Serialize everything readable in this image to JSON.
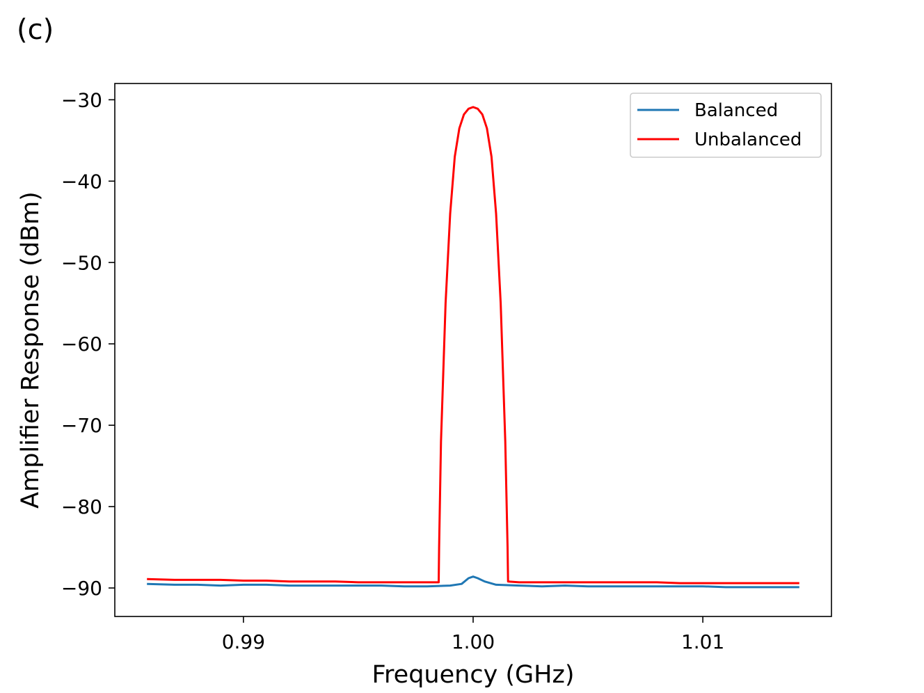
{
  "panel_label": "(c)",
  "chart_data": {
    "type": "line",
    "title": "",
    "xlabel": "Frequency (GHz)",
    "ylabel": "Amplifier Response (dBm)",
    "xlim": [
      0.9844,
      1.0156
    ],
    "ylim": [
      -93.5,
      -28
    ],
    "x_ticks": [
      0.99,
      1.0,
      1.01
    ],
    "x_tick_labels": [
      "0.99",
      "1.00",
      "1.01"
    ],
    "y_ticks": [
      -90,
      -80,
      -70,
      -60,
      -50,
      -40,
      -30
    ],
    "y_tick_labels": [
      "−90",
      "−80",
      "−70",
      "−60",
      "−50",
      "−40",
      "−30"
    ],
    "grid": false,
    "legend": {
      "position": "top-right",
      "entries": [
        "Balanced",
        "Unbalanced"
      ]
    },
    "series": [
      {
        "name": "Balanced",
        "color": "#1f77b4",
        "x": [
          0.9858,
          0.987,
          0.988,
          0.989,
          0.99,
          0.991,
          0.992,
          0.993,
          0.994,
          0.995,
          0.996,
          0.997,
          0.998,
          0.999,
          0.9995,
          0.9998,
          1.0,
          1.0002,
          1.0005,
          1.001,
          1.002,
          1.003,
          1.004,
          1.005,
          1.006,
          1.007,
          1.008,
          1.009,
          1.01,
          1.011,
          1.012,
          1.013,
          1.0142
        ],
        "y": [
          -89.5,
          -89.6,
          -89.6,
          -89.7,
          -89.6,
          -89.6,
          -89.7,
          -89.7,
          -89.7,
          -89.7,
          -89.7,
          -89.8,
          -89.8,
          -89.7,
          -89.5,
          -88.8,
          -88.6,
          -88.8,
          -89.2,
          -89.6,
          -89.7,
          -89.8,
          -89.7,
          -89.8,
          -89.8,
          -89.8,
          -89.8,
          -89.8,
          -89.8,
          -89.9,
          -89.9,
          -89.9,
          -89.9
        ]
      },
      {
        "name": "Unbalanced",
        "color": "#ff0000",
        "x": [
          0.9858,
          0.987,
          0.988,
          0.989,
          0.99,
          0.991,
          0.992,
          0.993,
          0.994,
          0.995,
          0.996,
          0.997,
          0.998,
          0.9985,
          0.99852,
          0.9986,
          0.9988,
          0.999,
          0.9992,
          0.9994,
          0.9996,
          0.9998,
          1.0,
          1.0002,
          1.0004,
          1.0006,
          1.0008,
          1.001,
          1.0012,
          1.0014,
          1.0015,
          1.00152,
          1.002,
          1.003,
          1.004,
          1.005,
          1.006,
          1.007,
          1.008,
          1.009,
          1.01,
          1.011,
          1.012,
          1.013,
          1.0142
        ],
        "y": [
          -88.9,
          -89.0,
          -89.0,
          -89.0,
          -89.1,
          -89.1,
          -89.2,
          -89.2,
          -89.2,
          -89.3,
          -89.3,
          -89.3,
          -89.3,
          -89.3,
          -85.0,
          -72.0,
          -55.0,
          -44.0,
          -37.0,
          -33.5,
          -31.8,
          -31.1,
          -30.9,
          -31.1,
          -31.8,
          -33.5,
          -37.0,
          -44.0,
          -55.0,
          -72.0,
          -85.0,
          -89.2,
          -89.3,
          -89.3,
          -89.3,
          -89.3,
          -89.3,
          -89.3,
          -89.3,
          -89.4,
          -89.4,
          -89.4,
          -89.4,
          -89.4,
          -89.4
        ]
      }
    ]
  }
}
